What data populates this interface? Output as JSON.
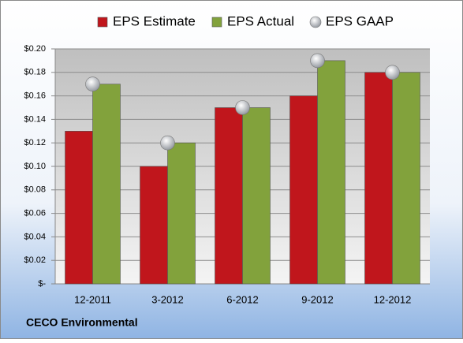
{
  "chart_data": {
    "type": "bar",
    "categories": [
      "12-2011",
      "3-2012",
      "6-2012",
      "9-2012",
      "12-2012"
    ],
    "series": [
      {
        "name": "EPS Estimate",
        "color": "#c0161c",
        "marker": "bar",
        "values": [
          0.13,
          0.1,
          0.15,
          0.16,
          0.18
        ]
      },
      {
        "name": "EPS Actual",
        "color": "#82a23c",
        "marker": "bar",
        "values": [
          0.17,
          0.12,
          0.15,
          0.19,
          0.18
        ]
      },
      {
        "name": "EPS GAAP",
        "color": "#b8bcc4",
        "marker": "circle",
        "values": [
          0.17,
          0.12,
          0.15,
          0.19,
          0.18
        ]
      }
    ],
    "ylim": [
      0,
      0.2
    ],
    "yticks": [
      {
        "value": 0,
        "label": "$-"
      },
      {
        "value": 0.02,
        "label": "$0.02"
      },
      {
        "value": 0.04,
        "label": "$0.04"
      },
      {
        "value": 0.06,
        "label": "$0.06"
      },
      {
        "value": 0.08,
        "label": "$0.08"
      },
      {
        "value": 0.1,
        "label": "$0.10"
      },
      {
        "value": 0.12,
        "label": "$0.12"
      },
      {
        "value": 0.14,
        "label": "$0.14"
      },
      {
        "value": 0.16,
        "label": "$0.16"
      },
      {
        "value": 0.18,
        "label": "$0.18"
      },
      {
        "value": 0.2,
        "label": "$0.20"
      }
    ],
    "grid": true,
    "legend": "top",
    "source": "CECO Environmental"
  }
}
